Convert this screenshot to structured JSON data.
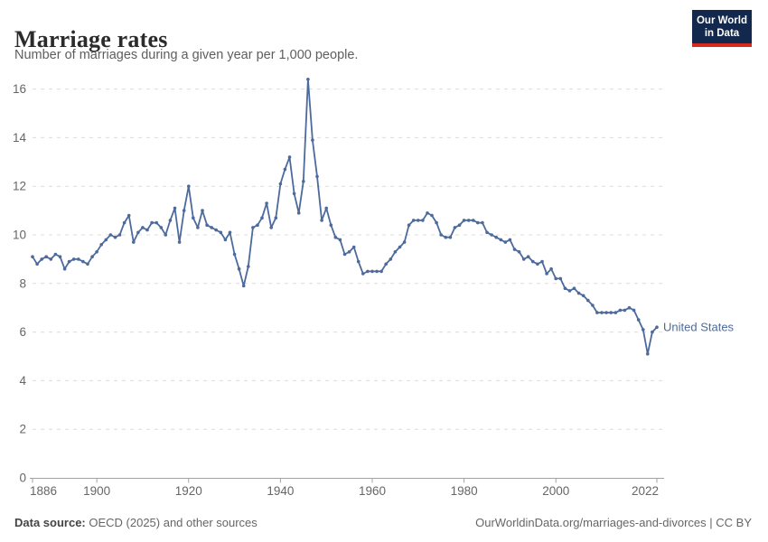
{
  "header": {
    "title": "Marriage rates",
    "subtitle": "Number of marriages during a given year per 1,000 people.",
    "logo": {
      "line1": "Our World",
      "line2": "in Data",
      "bg_color": "#12294d",
      "accent_color": "#d42a20"
    }
  },
  "chart_data": {
    "type": "line",
    "title": "Marriage rates",
    "subtitle": "Number of marriages during a given year per 1,000 people.",
    "xlabel": "",
    "ylabel": "",
    "xlim": [
      1886,
      2022
    ],
    "ylim": [
      0,
      16
    ],
    "x_ticks": [
      1886,
      1900,
      1920,
      1940,
      1960,
      1980,
      2000,
      2022
    ],
    "y_ticks": [
      0,
      2,
      4,
      6,
      8,
      10,
      12,
      14,
      16
    ],
    "grid": "horizontal-dashed",
    "legend": "end-of-line-label",
    "series": [
      {
        "name": "United States",
        "color": "#4C6A9C",
        "x_start": 1886,
        "x_end": 2022,
        "x_step": 1,
        "values": [
          9.1,
          8.8,
          9.0,
          9.1,
          9.0,
          9.2,
          9.1,
          8.6,
          8.9,
          9.0,
          9.0,
          8.9,
          8.8,
          9.1,
          9.3,
          9.6,
          9.8,
          10.0,
          9.9,
          10.0,
          10.5,
          10.8,
          9.7,
          10.1,
          10.3,
          10.2,
          10.5,
          10.5,
          10.3,
          10.0,
          10.6,
          11.1,
          9.7,
          11.0,
          12.0,
          10.7,
          10.3,
          11.0,
          10.4,
          10.3,
          10.2,
          10.1,
          9.8,
          10.1,
          9.2,
          8.6,
          7.9,
          8.7,
          10.3,
          10.4,
          10.7,
          11.3,
          10.3,
          10.7,
          12.1,
          12.7,
          13.2,
          11.7,
          10.9,
          12.2,
          16.4,
          13.9,
          12.4,
          10.6,
          11.1,
          10.4,
          9.9,
          9.8,
          9.2,
          9.3,
          9.5,
          8.9,
          8.4,
          8.5,
          8.5,
          8.5,
          8.5,
          8.8,
          9.0,
          9.3,
          9.5,
          9.7,
          10.4,
          10.6,
          10.6,
          10.6,
          10.9,
          10.8,
          10.5,
          10.0,
          9.9,
          9.9,
          10.3,
          10.4,
          10.6,
          10.6,
          10.6,
          10.5,
          10.5,
          10.1,
          10.0,
          9.9,
          9.8,
          9.7,
          9.8,
          9.4,
          9.3,
          9.0,
          9.1,
          8.9,
          8.8,
          8.9,
          8.4,
          8.6,
          8.2,
          8.2,
          7.8,
          7.7,
          7.8,
          7.6,
          7.5,
          7.3,
          7.1,
          6.8,
          6.8,
          6.8,
          6.8,
          6.8,
          6.9,
          6.9,
          7.0,
          6.9,
          6.5,
          6.1,
          5.1,
          6.0,
          6.2
        ]
      }
    ]
  },
  "footer": {
    "source_label": "Data source:",
    "source_text": " OECD (2025) and other sources",
    "credit": "OurWorldinData.org/marriages-and-divorces | CC BY"
  }
}
